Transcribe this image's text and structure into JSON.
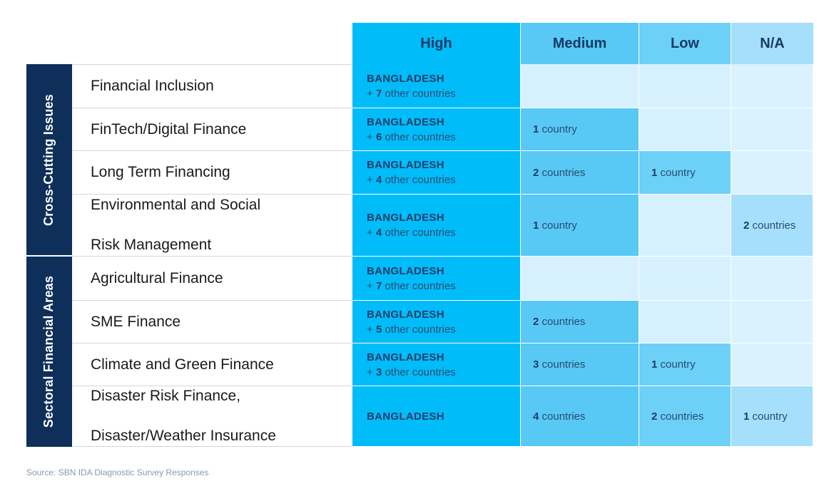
{
  "chart_data": {
    "type": "table",
    "columns": [
      "High",
      "Medium",
      "Low",
      "N/A"
    ],
    "groups": [
      {
        "label": "Cross-Cutting Issues",
        "rows": [
          0,
          1,
          2,
          3
        ]
      },
      {
        "label": "Sectoral Financial Areas",
        "rows": [
          4,
          5,
          6,
          7
        ]
      }
    ],
    "rows": [
      {
        "label": "Financial Inclusion",
        "high": {
          "country": "BANGLADESH",
          "other_count": 7,
          "other_text": "other countries"
        },
        "medium": null,
        "low": null,
        "na": null
      },
      {
        "label": "FinTech/Digital Finance",
        "high": {
          "country": "BANGLADESH",
          "other_count": 6,
          "other_text": "other countries"
        },
        "medium": {
          "count": 1,
          "unit": "country"
        },
        "low": null,
        "na": null
      },
      {
        "label": "Long Term Financing",
        "high": {
          "country": "BANGLADESH",
          "other_count": 4,
          "other_text": "other countries"
        },
        "medium": {
          "count": 2,
          "unit": "countries"
        },
        "low": {
          "count": 1,
          "unit": "country"
        },
        "na": null
      },
      {
        "label": "Environmental and Social Risk Management",
        "high": {
          "country": "BANGLADESH",
          "other_count": 4,
          "other_text": "other countries"
        },
        "medium": {
          "count": 1,
          "unit": "country"
        },
        "low": null,
        "na": {
          "count": 2,
          "unit": "countries"
        }
      },
      {
        "label": "Agricultural Finance",
        "high": {
          "country": "BANGLADESH",
          "other_count": 7,
          "other_text": "other countries"
        },
        "medium": null,
        "low": null,
        "na": null
      },
      {
        "label": "SME Finance",
        "high": {
          "country": "BANGLADESH",
          "other_count": 5,
          "other_text": "other countries"
        },
        "medium": {
          "count": 2,
          "unit": "countries"
        },
        "low": null,
        "na": null
      },
      {
        "label": "Climate and Green Finance",
        "high": {
          "country": "BANGLADESH",
          "other_count": 3,
          "other_text": "other countries"
        },
        "medium": {
          "count": 3,
          "unit": "countries"
        },
        "low": {
          "count": 1,
          "unit": "country"
        },
        "na": null
      },
      {
        "label": "Disaster Risk Finance, Disaster/Weather Insurance",
        "high": {
          "country": "BANGLADESH",
          "other_count": null,
          "other_text": null
        },
        "medium": {
          "count": 4,
          "unit": "countries"
        },
        "low": {
          "count": 2,
          "unit": "countries"
        },
        "na": {
          "count": 1,
          "unit": "country"
        }
      }
    ],
    "source": "Source: SBN IDA Diagnostic Survey Responses"
  },
  "colors": {
    "high": "#00bcf9",
    "medium_filled": "#57c9f4",
    "medium_empty": "#d6f1fd",
    "low_filled": "#6dd0f7",
    "low_empty": "#d6f1fd",
    "na_filled": "#a5dffb",
    "na_empty": "#d9f2fd",
    "header_high": "#00bcf9",
    "header_medium": "#57c9f4",
    "header_low": "#6dd0f7",
    "header_na": "#a5dffb",
    "group_band": "#0d2f5a"
  }
}
